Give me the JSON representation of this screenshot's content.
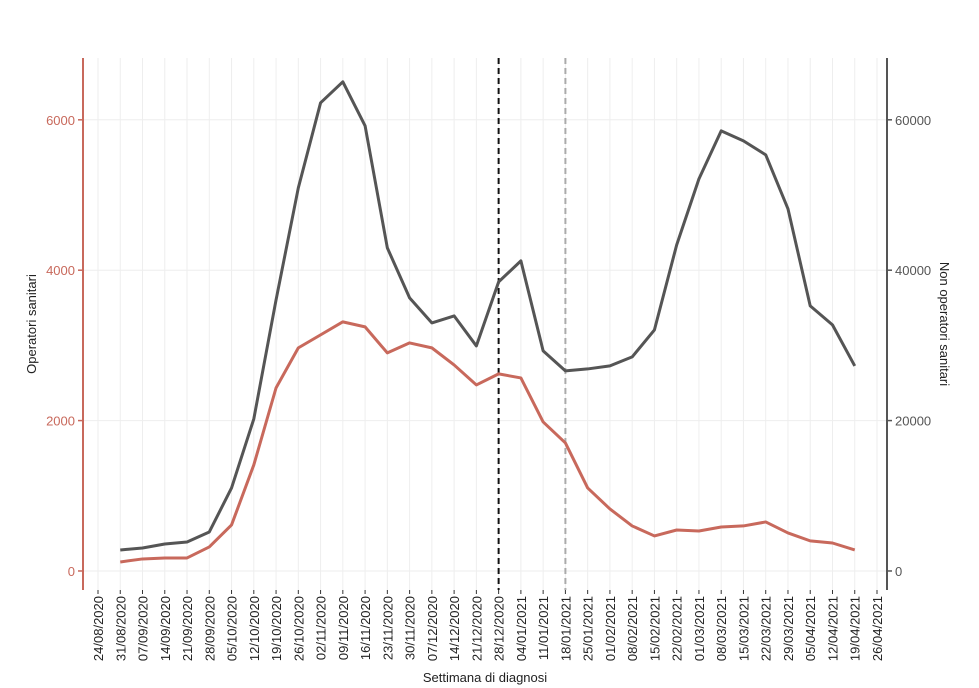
{
  "chart_data": {
    "type": "line",
    "ylabel": "Operatori sanitari",
    "y2label": "Non operatori sanitari",
    "xlabel": "Settimana di diagnosi",
    "categories": [
      "24/08/2020",
      "31/08/2020",
      "07/09/2020",
      "14/09/2020",
      "21/09/2020",
      "28/09/2020",
      "05/10/2020",
      "12/10/2020",
      "19/10/2020",
      "26/10/2020",
      "02/11/2020",
      "09/11/2020",
      "16/11/2020",
      "23/11/2020",
      "30/11/2020",
      "07/12/2020",
      "14/12/2020",
      "21/12/2020",
      "28/12/2020",
      "04/01/2021",
      "11/01/2021",
      "18/01/2021",
      "25/01/2021",
      "01/02/2021",
      "08/02/2021",
      "15/02/2021",
      "22/02/2021",
      "01/03/2021",
      "08/03/2021",
      "15/03/2021",
      "22/03/2021",
      "29/03/2021",
      "05/04/2021",
      "12/04/2021",
      "19/04/2021",
      "26/04/2021"
    ],
    "series": [
      {
        "color": "#c8695c",
        "axis": "y",
        "values": [
          null,
          120,
          160,
          173,
          173,
          320,
          612,
          1410,
          2435,
          2967,
          3140,
          3313,
          3246,
          2900,
          3033,
          2967,
          2740,
          2474,
          2621,
          2567,
          1982,
          1703,
          1104,
          825,
          599,
          466,
          545,
          532,
          585,
          599,
          652,
          506,
          400,
          372,
          280,
          null
        ]
      },
      {
        "color": "#555555",
        "axis": "y2",
        "values": [
          null,
          2790,
          3060,
          3590,
          3860,
          5190,
          11040,
          20220,
          36050,
          50950,
          62260,
          65050,
          59200,
          42970,
          36320,
          32990,
          33920,
          29930,
          38450,
          41240,
          29270,
          26610,
          26870,
          27270,
          28470,
          32060,
          43370,
          52150,
          58530,
          57200,
          55340,
          48160,
          35250,
          32730,
          27270,
          null
        ]
      }
    ],
    "ylim": [
      -253,
      6822
    ],
    "yticks": [
      0,
      2000,
      4000,
      6000
    ],
    "ycolor": "#c8695c",
    "y2lim": [
      -2530,
      68220
    ],
    "y2ticks": [
      0,
      20000,
      40000,
      60000
    ],
    "y2color": "#555555",
    "vlines": [
      {
        "x": "28/12/2020",
        "color": "#111111"
      },
      {
        "x": "18/01/2021",
        "color": "#aaaaaa"
      }
    ],
    "grid": true
  }
}
